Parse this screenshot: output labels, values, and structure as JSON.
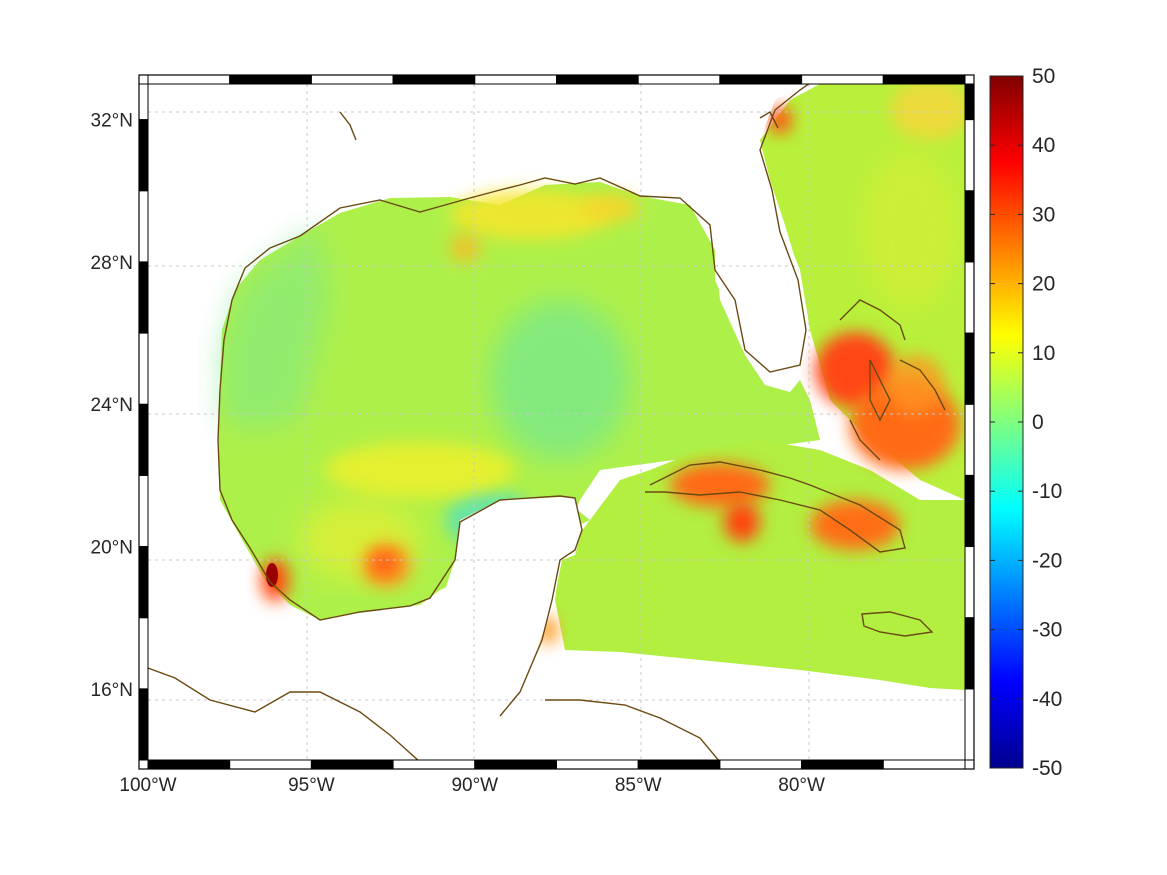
{
  "map": {
    "region": "Gulf of Mexico and western Caribbean",
    "lon_range": [
      -100,
      -75
    ],
    "lat_range": [
      14,
      33
    ],
    "field_description": "filled color field over ocean with coastline outlines",
    "coastline_color": "#6b4a12",
    "grid": true,
    "frame_style": "black-white alternating border",
    "hot_spots": [
      {
        "near_lon": -96.2,
        "near_lat": 19.6,
        "level": 45
      },
      {
        "near_lon": -92.7,
        "near_lat": 19.9,
        "level": 28
      },
      {
        "near_lon": -82.5,
        "near_lat": 22.0,
        "level": 30
      },
      {
        "near_lon": -82.1,
        "near_lat": 20.9,
        "level": 32
      },
      {
        "near_lon": -79.5,
        "near_lat": 21.0,
        "level": 26
      },
      {
        "near_lon": -78.6,
        "near_lat": 25.4,
        "level": 35
      },
      {
        "near_lon": -77.0,
        "near_lat": 23.9,
        "level": 28
      },
      {
        "near_lon": -79.2,
        "near_lat": 31.9,
        "level": 30
      }
    ]
  },
  "axes": {
    "x_ticks": [
      {
        "value": -100,
        "label": "100°W"
      },
      {
        "value": -95,
        "label": "95°W"
      },
      {
        "value": -90,
        "label": "90°W"
      },
      {
        "value": -85,
        "label": "85°W"
      },
      {
        "value": -80,
        "label": "80°W"
      }
    ],
    "y_ticks": [
      {
        "value": 32,
        "label": "32°N"
      },
      {
        "value": 28,
        "label": "28°N"
      },
      {
        "value": 24,
        "label": "24°N"
      },
      {
        "value": 20,
        "label": "20°N"
      },
      {
        "value": 16,
        "label": "16°N"
      }
    ]
  },
  "colorbar": {
    "colormap": "jet",
    "min": -50,
    "max": 50,
    "colors": [
      "#00008f",
      "#0000ff",
      "#00ffff",
      "#ffff00",
      "#ff0000",
      "#800000"
    ],
    "ticks": [
      {
        "value": 50,
        "label": "50"
      },
      {
        "value": 40,
        "label": "40"
      },
      {
        "value": 30,
        "label": "30"
      },
      {
        "value": 20,
        "label": "20"
      },
      {
        "value": 10,
        "label": "10"
      },
      {
        "value": 0,
        "label": "0"
      },
      {
        "value": -10,
        "label": "-10"
      },
      {
        "value": -20,
        "label": "-20"
      },
      {
        "value": -30,
        "label": "-30"
      },
      {
        "value": -40,
        "label": "-40"
      },
      {
        "value": -50,
        "label": "-50"
      }
    ]
  }
}
